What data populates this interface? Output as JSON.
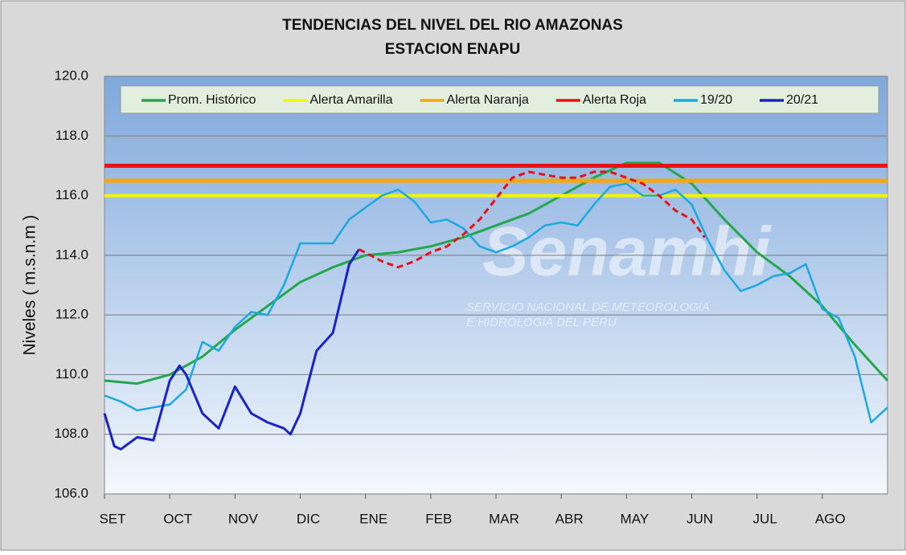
{
  "chart_data": {
    "type": "line",
    "title": "TENDENCIAS DEL NIVEL DEL RIO AMAZONAS",
    "subtitle": "ESTACION ENAPU",
    "y_label": "Niveles ( m.s.n.m )",
    "watermark": [
      "Senamhi",
      "SERVICIO NACIONAL DE METEOROLOGÍA",
      "E HIDROLOGÍA DEL PERU"
    ],
    "xlim": [
      0,
      12
    ],
    "xticks": [
      {
        "value": 0,
        "label": "SET"
      },
      {
        "value": 1,
        "label": "OCT"
      },
      {
        "value": 2,
        "label": "NOV"
      },
      {
        "value": 3,
        "label": "DIC"
      },
      {
        "value": 4,
        "label": "ENE"
      },
      {
        "value": 5,
        "label": "FEB"
      },
      {
        "value": 6,
        "label": "MAR"
      },
      {
        "value": 7,
        "label": "ABR"
      },
      {
        "value": 8,
        "label": "MAY"
      },
      {
        "value": 9,
        "label": "JUN"
      },
      {
        "value": 10,
        "label": "JUL"
      },
      {
        "value": 11,
        "label": "AGO"
      }
    ],
    "ylim": [
      106,
      120
    ],
    "yticks": [
      {
        "value": 106,
        "label": "106.0"
      },
      {
        "value": 108,
        "label": "108.0"
      },
      {
        "value": 110,
        "label": "110.0"
      },
      {
        "value": 112,
        "label": "112.0"
      },
      {
        "value": 114,
        "label": "114.0"
      },
      {
        "value": 116,
        "label": "116.0"
      },
      {
        "value": 118,
        "label": "118.0"
      },
      {
        "value": 120,
        "label": "120.0"
      }
    ],
    "grid": true,
    "series": [
      {
        "name": "Prom. Histórico",
        "color": "#22a84a",
        "width": 3,
        "x": [
          0,
          0.5,
          1,
          1.5,
          2,
          2.5,
          3,
          3.5,
          4,
          4.5,
          5,
          5.5,
          6,
          6.5,
          7,
          7.5,
          8,
          8.5,
          9,
          9.5,
          10,
          10.5,
          11,
          11.5,
          12
        ],
        "values": [
          109.8,
          109.7,
          110.0,
          110.6,
          111.5,
          112.3,
          113.1,
          113.6,
          114.0,
          114.1,
          114.3,
          114.6,
          115.0,
          115.4,
          116.0,
          116.6,
          117.1,
          117.1,
          116.4,
          115.2,
          114.1,
          113.3,
          112.3,
          111.0,
          109.8
        ]
      },
      {
        "name": "Alerta Amarilla",
        "color": "#f5f500",
        "width": 4,
        "x": [
          0,
          12
        ],
        "values": [
          116,
          116
        ]
      },
      {
        "name": "Alerta Naranja",
        "color": "#f5a800",
        "width": 5,
        "x": [
          0,
          12
        ],
        "values": [
          116.5,
          116.5
        ]
      },
      {
        "name": "Alerta Roja",
        "color": "#e81010",
        "width": 5,
        "x": [
          0,
          12
        ],
        "values": [
          117,
          117
        ]
      },
      {
        "name": "19/20",
        "color": "#1aa8e0",
        "width": 2.5,
        "x": [
          0,
          0.25,
          0.5,
          0.75,
          1,
          1.25,
          1.5,
          1.75,
          2,
          2.25,
          2.5,
          2.75,
          3,
          3.25,
          3.5,
          3.75,
          4,
          4.25,
          4.5,
          4.75,
          5,
          5.25,
          5.5,
          5.75,
          6,
          6.25,
          6.5,
          6.75,
          7,
          7.25,
          7.5,
          7.75,
          8,
          8.25,
          8.5,
          8.75,
          9,
          9.25,
          9.5,
          9.75,
          10,
          10.25,
          10.5,
          10.75,
          11,
          11.25,
          11.5,
          11.75,
          12
        ],
        "values": [
          109.3,
          109.1,
          108.8,
          108.9,
          109.0,
          109.5,
          111.1,
          110.8,
          111.6,
          112.1,
          112.0,
          113.0,
          114.4,
          114.4,
          114.4,
          115.2,
          115.6,
          116.0,
          116.2,
          115.8,
          115.1,
          115.2,
          114.9,
          114.3,
          114.1,
          114.3,
          114.6,
          115.0,
          115.1,
          115.0,
          115.7,
          116.3,
          116.4,
          116.0,
          116.0,
          116.2,
          115.7,
          114.5,
          113.5,
          112.8,
          113.0,
          113.3,
          113.4,
          113.7,
          112.2,
          111.9,
          110.6,
          108.4,
          108.9
        ]
      },
      {
        "name": "20/21",
        "color": "#1a22c8",
        "width": 3,
        "x": [
          0,
          0.15,
          0.25,
          0.5,
          0.75,
          1,
          1.15,
          1.25,
          1.5,
          1.75,
          2,
          2.25,
          2.5,
          2.75,
          2.85,
          3,
          3.25,
          3.5,
          3.75,
          3.9
        ],
        "values": [
          108.7,
          107.6,
          107.5,
          107.9,
          107.8,
          109.8,
          110.3,
          110.0,
          108.7,
          108.2,
          109.6,
          108.7,
          108.4,
          108.2,
          108.0,
          108.7,
          110.8,
          111.4,
          113.7,
          114.2
        ]
      },
      {
        "color": "#e81010",
        "width": 3,
        "dashed": true,
        "x": [
          3.9,
          4.25,
          4.5,
          4.75,
          5,
          5.25,
          5.5,
          5.75,
          6,
          6.25,
          6.5,
          6.75,
          7,
          7.25,
          7.5,
          7.75,
          8,
          8.25,
          8.5,
          8.75,
          9,
          9.2
        ],
        "values": [
          114.2,
          113.8,
          113.6,
          113.8,
          114.1,
          114.3,
          114.7,
          115.2,
          115.9,
          116.6,
          116.8,
          116.7,
          116.6,
          116.6,
          116.8,
          116.8,
          116.6,
          116.4,
          116.0,
          115.5,
          115.2,
          114.6
        ]
      }
    ]
  }
}
